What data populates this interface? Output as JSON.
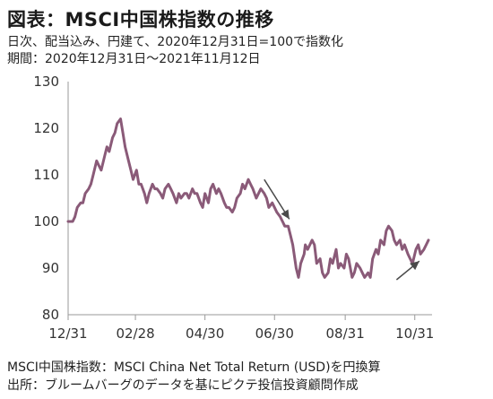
{
  "header": {
    "title": "図表：MSCI中国株指数の推移",
    "subtitle_line1": "日次、配当込み、円建て、2020年12月31日=100で指数化",
    "subtitle_line2": "期間：2020年12月31日～2021年11月12日"
  },
  "footer": {
    "note_line1": "MSCI中国株指数：MSCI China Net Total Return (USD)を円換算",
    "note_line2": "出所：ブルームバーグのデータを基にピクテ投信投資顧問作成"
  },
  "colors": {
    "line": "#8a5a78",
    "arrow": "#4a4a4a",
    "axis": "#999999"
  },
  "chart_data": {
    "type": "line",
    "title": "MSCI中国株指数の推移",
    "xlabel": "",
    "ylabel": "",
    "ylim": [
      80,
      130
    ],
    "y_ticks": [
      80,
      90,
      100,
      110,
      120,
      130
    ],
    "x_tick_labels": [
      "12/31",
      "02/28",
      "04/30",
      "06/30",
      "08/31",
      "10/31"
    ],
    "x_tick_dates": [
      "2020-12-31",
      "2021-02-28",
      "2021-04-30",
      "2021-06-30",
      "2021-08-31",
      "2021-10-31"
    ],
    "x_range": [
      "2020-12-31",
      "2021-11-12"
    ],
    "grid": false,
    "series": [
      {
        "x": [
          "2020-12-31",
          "2021-01-04",
          "2021-01-06",
          "2021-01-08",
          "2021-01-11",
          "2021-01-13",
          "2021-01-15",
          "2021-01-18",
          "2021-01-20",
          "2021-01-22",
          "2021-01-25",
          "2021-01-27",
          "2021-01-29",
          "2021-02-01",
          "2021-02-03",
          "2021-02-05",
          "2021-02-08",
          "2021-02-10",
          "2021-02-12",
          "2021-02-15",
          "2021-02-17",
          "2021-02-19",
          "2021-02-22",
          "2021-02-24",
          "2021-02-26",
          "2021-03-01",
          "2021-03-03",
          "2021-03-05",
          "2021-03-08",
          "2021-03-10",
          "2021-03-12",
          "2021-03-15",
          "2021-03-17",
          "2021-03-19",
          "2021-03-22",
          "2021-03-24",
          "2021-03-26",
          "2021-03-29",
          "2021-03-31",
          "2021-04-02",
          "2021-04-05",
          "2021-04-07",
          "2021-04-09",
          "2021-04-12",
          "2021-04-14",
          "2021-04-16",
          "2021-04-19",
          "2021-04-21",
          "2021-04-23",
          "2021-04-26",
          "2021-04-28",
          "2021-04-30",
          "2021-05-03",
          "2021-05-05",
          "2021-05-07",
          "2021-05-10",
          "2021-05-12",
          "2021-05-14",
          "2021-05-17",
          "2021-05-19",
          "2021-05-21",
          "2021-05-24",
          "2021-05-26",
          "2021-05-28",
          "2021-05-31",
          "2021-06-02",
          "2021-06-04",
          "2021-06-07",
          "2021-06-09",
          "2021-06-11",
          "2021-06-14",
          "2021-06-16",
          "2021-06-18",
          "2021-06-21",
          "2021-06-23",
          "2021-06-25",
          "2021-06-28",
          "2021-06-30",
          "2021-07-02",
          "2021-07-05",
          "2021-07-07",
          "2021-07-09",
          "2021-07-12",
          "2021-07-14",
          "2021-07-16",
          "2021-07-19",
          "2021-07-21",
          "2021-07-23",
          "2021-07-26",
          "2021-07-27",
          "2021-07-29",
          "2021-08-02",
          "2021-08-04",
          "2021-08-06",
          "2021-08-09",
          "2021-08-11",
          "2021-08-13",
          "2021-08-16",
          "2021-08-18",
          "2021-08-20",
          "2021-08-23",
          "2021-08-25",
          "2021-08-27",
          "2021-08-30",
          "2021-09-01",
          "2021-09-03",
          "2021-09-06",
          "2021-09-08",
          "2021-09-10",
          "2021-09-13",
          "2021-09-15",
          "2021-09-17",
          "2021-09-20",
          "2021-09-22",
          "2021-09-24",
          "2021-09-27",
          "2021-09-29",
          "2021-10-01",
          "2021-10-04",
          "2021-10-06",
          "2021-10-08",
          "2021-10-11",
          "2021-10-13",
          "2021-10-15",
          "2021-10-18",
          "2021-10-20",
          "2021-10-22",
          "2021-10-25",
          "2021-10-27",
          "2021-10-29",
          "2021-11-01",
          "2021-11-03",
          "2021-11-05",
          "2021-11-08",
          "2021-11-10",
          "2021-11-12"
        ],
        "y": [
          100,
          100,
          101,
          103,
          104,
          104,
          106,
          107,
          108,
          110,
          113,
          112,
          111,
          114,
          116,
          115,
          118,
          119,
          121,
          122,
          119,
          116,
          113,
          111,
          109,
          111,
          108,
          108,
          106,
          104,
          106,
          108,
          107,
          107,
          106,
          105,
          107,
          108,
          107,
          106,
          104,
          106,
          105,
          106,
          106,
          105,
          107,
          106,
          106,
          104,
          103,
          106,
          104,
          107,
          108,
          106,
          107,
          106,
          104,
          103,
          103,
          102,
          103,
          105,
          106,
          108,
          107,
          109,
          108,
          107,
          105,
          106,
          107,
          106,
          105,
          103,
          104,
          103,
          102,
          101,
          100,
          99,
          99,
          97,
          95,
          90,
          88,
          91,
          93,
          95,
          94,
          96,
          95,
          91,
          92,
          89,
          88,
          89,
          92,
          91,
          94,
          90,
          91,
          90,
          93,
          92,
          88,
          89,
          91,
          90,
          89,
          88,
          89,
          88,
          92,
          94,
          93,
          96,
          95,
          98,
          99,
          98,
          96,
          95,
          96,
          94,
          95,
          93,
          92,
          91,
          94,
          95,
          93,
          94,
          95,
          96
        ]
      }
    ],
    "annotations": [
      {
        "type": "arrow",
        "from": [
          "2021-06-21",
          109
        ],
        "to": [
          "2021-07-13",
          100.5
        ]
      },
      {
        "type": "arrow",
        "from": [
          "2021-10-15",
          87.5
        ],
        "to": [
          "2021-11-04",
          91.5
        ]
      }
    ]
  }
}
